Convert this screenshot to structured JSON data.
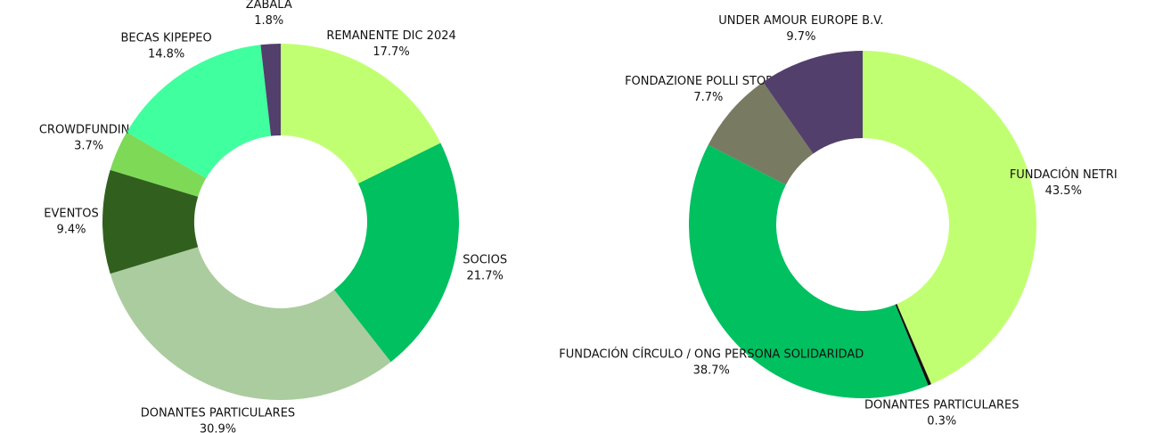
{
  "chart_data": [
    {
      "type": "donut",
      "categories": [
        "REMANENTE DIC 2024",
        "SOCIOS",
        "DONANTES PARTICULARES",
        "EVENTOS",
        "CROWDFUNDING",
        "BECAS KIPEPEO",
        "ZABALA"
      ],
      "values": [
        17.7,
        21.7,
        30.9,
        9.4,
        3.7,
        14.8,
        1.8
      ],
      "value_labels": [
        "17.7%",
        "21.7%",
        "30.9%",
        "9.4%",
        "3.7%",
        "14.8%",
        "1.8%"
      ],
      "colors": [
        "#c1ff72",
        "#00c060",
        "#abcc9f",
        "#31601e",
        "#7ed957",
        "#40ff9f",
        "#523f6b"
      ]
    },
    {
      "type": "donut",
      "categories": [
        "FUNDACIÓN NETRI",
        "DONANTES PARTICULARES",
        "FUNDACIÓN CÍRCULO / ONG PERSONA SOLIDARIDAD",
        "FONDAZIONE POLLI STOPANI",
        "UNDER AMOUR EUROPE B.V."
      ],
      "values": [
        43.5,
        0.3,
        38.7,
        7.7,
        9.7
      ],
      "value_labels": [
        "43.5%",
        "0.3%",
        "38.7%",
        "7.7%",
        "9.7%"
      ],
      "colors": [
        "#c1ff72",
        "#111111",
        "#00c060",
        "#787a62",
        "#523f6b"
      ]
    }
  ]
}
